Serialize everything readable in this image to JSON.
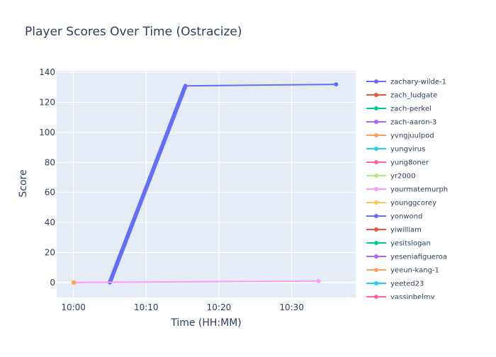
{
  "chart_data": {
    "type": "line",
    "title": "Player Scores Over Time (Ostracize)",
    "xlabel": "Time (HH:MM)",
    "ylabel": "Score",
    "x_unit": "minutes after 10:00",
    "xlim": [
      -2.3,
      38.8
    ],
    "ylim": [
      -10,
      141
    ],
    "x_tick_labels": [
      "10:00",
      "10:10",
      "10:20",
      "10:30"
    ],
    "x_tick_values": [
      0,
      10,
      20,
      30
    ],
    "y_ticks": [
      0,
      20,
      40,
      60,
      80,
      100,
      120,
      140
    ],
    "grid": true,
    "legend_position": "right",
    "colors": {
      "plot_bg": "#e5ecf6",
      "grid": "#ffffff",
      "text": "#2a3f5f"
    },
    "legend": [
      {
        "name": "zachary-wilde-1",
        "color": "#636efa"
      },
      {
        "name": "zach_ludgate",
        "color": "#ef553b"
      },
      {
        "name": "zach-perkel",
        "color": "#00cc96"
      },
      {
        "name": "zach-aaron-3",
        "color": "#ab63fa"
      },
      {
        "name": "yvngjuulpod",
        "color": "#ffa15a"
      },
      {
        "name": "yungvirus",
        "color": "#19d3f3"
      },
      {
        "name": "yung8oner",
        "color": "#ff6692"
      },
      {
        "name": "yr2000",
        "color": "#b6e880"
      },
      {
        "name": "yourmatemurph",
        "color": "#ff97ff"
      },
      {
        "name": "younggcorey",
        "color": "#fecb52"
      },
      {
        "name": "yonwond",
        "color": "#636efa"
      },
      {
        "name": "yiwilliam",
        "color": "#ef553b"
      },
      {
        "name": "yesitslogan",
        "color": "#00cc96"
      },
      {
        "name": "yeseniafigueroa",
        "color": "#ab63fa"
      },
      {
        "name": "yeeun-kang-1",
        "color": "#ffa15a"
      },
      {
        "name": "yeeted23",
        "color": "#19d3f3"
      },
      {
        "name": "yassinbelmy",
        "color": "#ff6692"
      }
    ],
    "series": [
      {
        "name": "zachary-wilde-1",
        "color": "#636efa",
        "ramp": {
          "x_start": 5.0,
          "x_end": 15.4,
          "y_start": 0,
          "y_end": 131,
          "step": 1
        },
        "tail": [
          {
            "x": 36.1,
            "y": 132
          }
        ]
      },
      {
        "name": "yourmatemurph",
        "color": "#ff97ff",
        "points": [
          {
            "x": 0.0,
            "y": 0
          },
          {
            "x": 33.7,
            "y": 1
          }
        ]
      },
      {
        "name": "younggcorey",
        "color": "#fecb52",
        "points": [
          {
            "x": 0.0,
            "y": 0
          }
        ]
      },
      {
        "name": "yvngjuulpod",
        "color": "#ffa15a",
        "points": [
          {
            "x": 0.1,
            "y": 0
          }
        ]
      }
    ]
  }
}
